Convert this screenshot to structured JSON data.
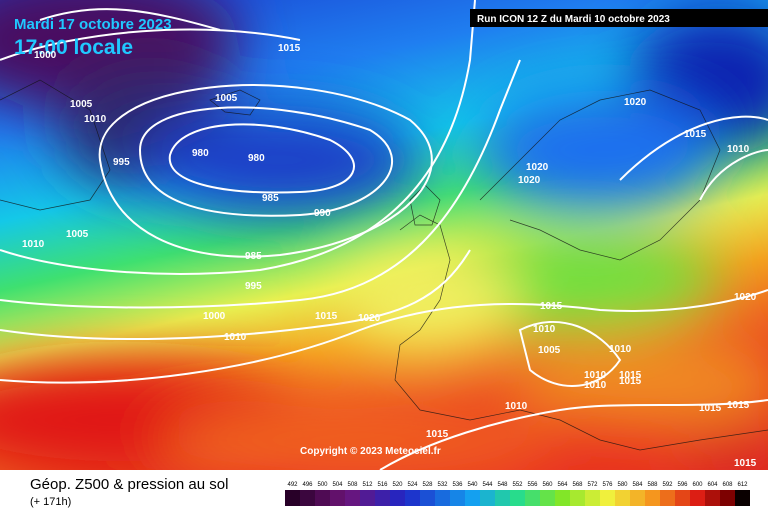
{
  "header": {
    "date": "Mardi 17 octobre 2023",
    "time": "17:00 locale",
    "run": "Run ICON 12 Z du Mardi 10 octobre 2023"
  },
  "pressure_labels": [
    1000,
    1015,
    1005,
    1010,
    1005,
    1020,
    980,
    980,
    995,
    1015,
    1010,
    1020,
    1020,
    985,
    990,
    1005,
    1010,
    985,
    995,
    1020,
    1015,
    1000,
    1015,
    1020,
    1010,
    1010,
    1005,
    1010,
    1010,
    1015,
    1010,
    1015,
    1010,
    1015,
    1015,
    1015,
    1015
  ],
  "copyright": "Copyright © 2023 Meteociel.fr",
  "footer": {
    "title": "Géop. Z500 & pression au sol",
    "lead": "(+ 171h)"
  },
  "scale": {
    "ticks": [
      492,
      496,
      500,
      504,
      508,
      512,
      516,
      520,
      524,
      528,
      532,
      536,
      540,
      544,
      548,
      552,
      556,
      560,
      564,
      568,
      572,
      576,
      580,
      584,
      588,
      592,
      596,
      600,
      604,
      608,
      612
    ]
  }
}
